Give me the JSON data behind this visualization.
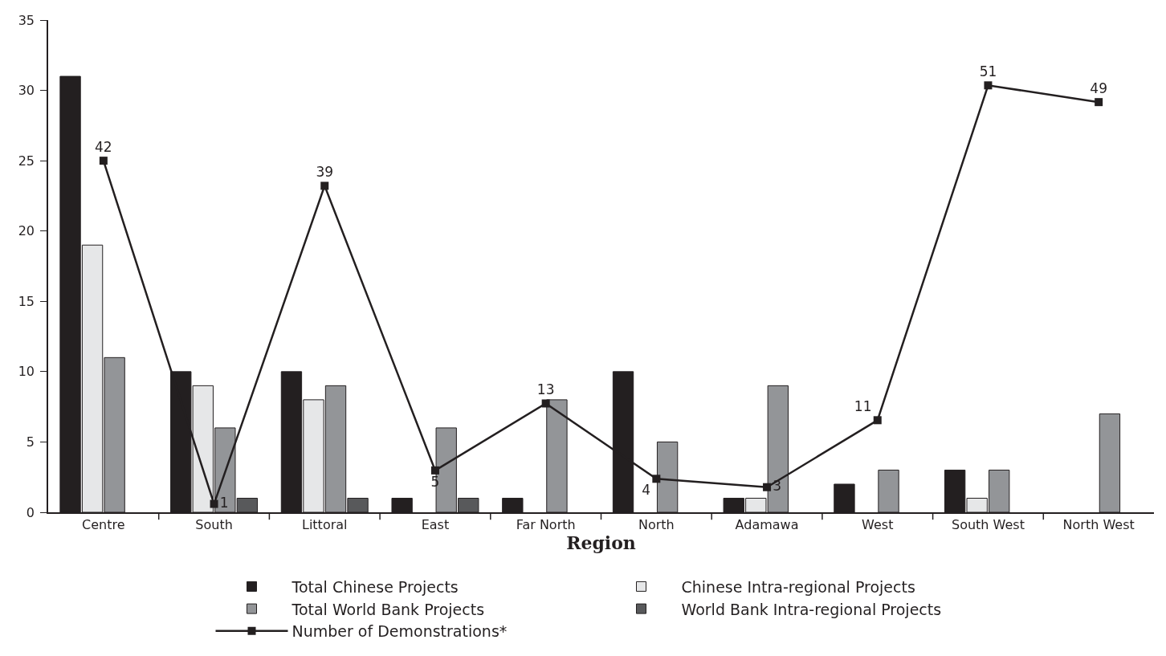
{
  "chart_data": {
    "type": "bar",
    "xlabel": "Region",
    "categories": [
      "Centre",
      "South",
      "Littoral",
      "East",
      "Far North",
      "North",
      "Adamawa",
      "West",
      "South West",
      "North West"
    ],
    "series": [
      {
        "name": "Number of Demonstrations*",
        "type": "line",
        "axis": "y2",
        "color": "#231f20",
        "values": [
          42,
          1,
          39,
          5,
          13,
          4,
          3,
          11,
          51,
          49
        ],
        "data_labels": true,
        "marker": "square",
        "line_style": "solid"
      },
      {
        "name": "Total Chinese Projects",
        "color": "#231f20",
        "values": [
          31,
          10,
          10,
          1,
          1,
          10,
          1,
          2,
          3,
          null
        ]
      },
      {
        "name": "Chinese Intra-regional Projects",
        "color": "#e6e7e8",
        "values": [
          19,
          9,
          8,
          null,
          null,
          null,
          1,
          null,
          1,
          null
        ]
      },
      {
        "name": "Total World Bank Projects",
        "color": "#939598",
        "values": [
          11,
          6,
          9,
          6,
          8,
          5,
          9,
          3,
          3,
          7
        ]
      },
      {
        "name": "World Bank Intra-regional Projects",
        "color": "#58595b",
        "values": [
          null,
          1,
          1,
          1,
          null,
          null,
          null,
          null,
          null,
          null
        ]
      }
    ],
    "ylim": [
      0,
      35
    ],
    "yticks": [
      0,
      5,
      10,
      15,
      20,
      25,
      30,
      35
    ],
    "y2lim": [
      0,
      58.8
    ],
    "tick_labels": "xy",
    "grid": false,
    "legend": "bottom"
  }
}
